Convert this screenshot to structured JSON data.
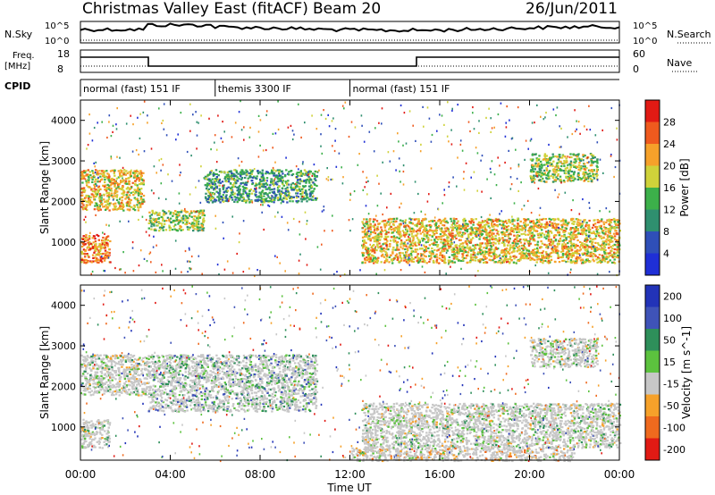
{
  "header": {
    "title": "Christmas Valley East (fitACF)",
    "beam": "Beam 20",
    "date": "26/Jun/2011"
  },
  "top_panels": {
    "nsky_label": "N.Sky",
    "nsearch_label": "N.Search",
    "freq_label": "Freq.",
    "freq_unit": "[MHz]",
    "nave_label": "Nave",
    "cpid_label": "CPID",
    "left_ticks_noise": [
      "10^5",
      "10^0"
    ],
    "right_ticks_noise": [
      "10^5",
      "10^0"
    ],
    "left_ticks_freq": [
      "18",
      "8"
    ],
    "right_ticks_freq": [
      "60",
      "0"
    ],
    "cpid_segments": [
      {
        "label": "normal (fast) 151 IF",
        "start_hour": 0,
        "end_hour": 6
      },
      {
        "label": "themis 3300 IF",
        "start_hour": 6,
        "end_hour": 12
      },
      {
        "label": "normal (fast) 151 IF",
        "start_hour": 12,
        "end_hour": 24
      }
    ]
  },
  "axes": {
    "xlabel": "Time UT",
    "ylabel_top": "Slant Range [km]",
    "ylabel_bottom": "Slant Range [km]",
    "x_ticks": [
      "00:00",
      "04:00",
      "08:00",
      "12:00",
      "16:00",
      "20:00",
      "00:00"
    ],
    "y_ticks": [
      "1000",
      "2000",
      "3000",
      "4000"
    ]
  },
  "power_scale": {
    "label": "Power [dB]",
    "ticks": [
      "4",
      "8",
      "12",
      "16",
      "20",
      "24",
      "28"
    ],
    "colors": [
      "#1f2fd6",
      "#2f4fb8",
      "#2f8f6f",
      "#3cb04a",
      "#cfd23a",
      "#f6a12a",
      "#ef5a1e",
      "#e11a14"
    ]
  },
  "velocity_scale": {
    "label": "Velocity [m s^-1]",
    "ticks": [
      "200",
      "100",
      "50",
      "15",
      "-15",
      "-50",
      "-100",
      "-200"
    ],
    "colors": [
      "#2233b8",
      "#3f53b8",
      "#2e8f5a",
      "#5cc23e",
      "#c7c7c7",
      "#f6a12a",
      "#ef6a1e",
      "#e11a14"
    ]
  },
  "chart_data": [
    {
      "type": "heatmap",
      "panel": "power",
      "xlabel": "Time UT",
      "ylabel": "Slant Range [km]",
      "xlim_hours": [
        0,
        24
      ],
      "ylim_km": [
        180,
        4500
      ],
      "colorbar_label": "Power [dB]",
      "colorbar_range": [
        0,
        30
      ],
      "echo_regions": [
        {
          "t0": 0.0,
          "t1": 1.3,
          "r0": 500,
          "r1": 1200,
          "level": 6
        },
        {
          "t0": 0.0,
          "t1": 2.8,
          "r0": 1800,
          "r1": 2800,
          "level": 5
        },
        {
          "t0": 3.0,
          "t1": 5.5,
          "r0": 1300,
          "r1": 1800,
          "level": 4
        },
        {
          "t0": 5.5,
          "t1": 10.5,
          "r0": 2000,
          "r1": 2800,
          "level": 3
        },
        {
          "t0": 12.5,
          "t1": 24.0,
          "r0": 500,
          "r1": 1600,
          "level": 5
        },
        {
          "t0": 20.0,
          "t1": 23.0,
          "r0": 2500,
          "r1": 3200,
          "level": 4
        }
      ]
    },
    {
      "type": "heatmap",
      "panel": "velocity",
      "xlabel": "Time UT",
      "ylabel": "Slant Range [km]",
      "xlim_hours": [
        0,
        24
      ],
      "ylim_km": [
        180,
        4500
      ],
      "colorbar_label": "Velocity [m s^-1]",
      "colorbar_range": [
        -200,
        200
      ],
      "echo_regions": [
        {
          "t0": 0.0,
          "t1": 1.3,
          "r0": 500,
          "r1": 1200,
          "level": 4
        },
        {
          "t0": 0.0,
          "t1": 3.0,
          "r0": 1800,
          "r1": 2800,
          "level": 4
        },
        {
          "t0": 3.0,
          "t1": 10.5,
          "r0": 1400,
          "r1": 2800,
          "level": 3
        },
        {
          "t0": 12.5,
          "t1": 24.0,
          "r0": 500,
          "r1": 1600,
          "level": 4
        },
        {
          "t0": 12.0,
          "t1": 22.0,
          "r0": 180,
          "r1": 500,
          "level": 5
        },
        {
          "t0": 20.0,
          "t1": 23.0,
          "r0": 2500,
          "r1": 3200,
          "level": 4
        }
      ]
    }
  ]
}
